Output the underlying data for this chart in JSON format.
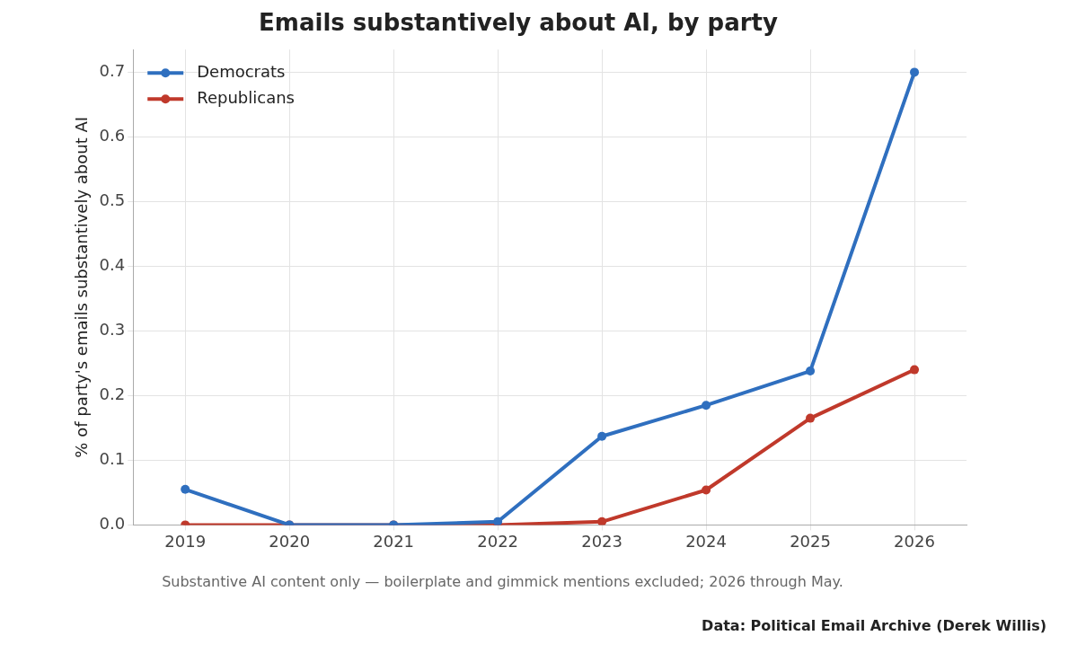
{
  "chart_data": {
    "type": "line",
    "title": "Emails substantively about AI, by party",
    "ylabel": "% of party's emails substantively about AI",
    "categories": [
      "2019",
      "2020",
      "2021",
      "2022",
      "2023",
      "2024",
      "2025",
      "2026"
    ],
    "series": [
      {
        "name": "Democrats",
        "color": "#2f6fbf",
        "values": [
          0.055,
          0,
          0,
          0.005,
          0.137,
          0.185,
          0.238,
          0.7
        ]
      },
      {
        "name": "Republicans",
        "color": "#c0392b",
        "values": [
          0,
          0,
          0,
          0,
          0.005,
          0.054,
          0.165,
          0.24
        ]
      }
    ],
    "ylim": [
      0,
      0.735
    ],
    "yticks": [
      {
        "value": 0,
        "label": "0.0"
      },
      {
        "value": 0.1,
        "label": "0.1"
      },
      {
        "value": 0.2,
        "label": "0.2"
      },
      {
        "value": 0.3,
        "label": "0.3"
      },
      {
        "value": 0.4,
        "label": "0.4"
      },
      {
        "value": 0.5,
        "label": "0.5"
      },
      {
        "value": 0.6,
        "label": "0.6"
      },
      {
        "value": 0.7,
        "label": "0.7"
      }
    ],
    "grid": true,
    "legend": "top left",
    "marker": "circle",
    "line_style": "solid",
    "annotations": [
      "Substantive AI content only — boilerplate and gimmick mentions excluded; 2026 through May.",
      "Data: Political Email Archive (Derek Willis)"
    ]
  }
}
